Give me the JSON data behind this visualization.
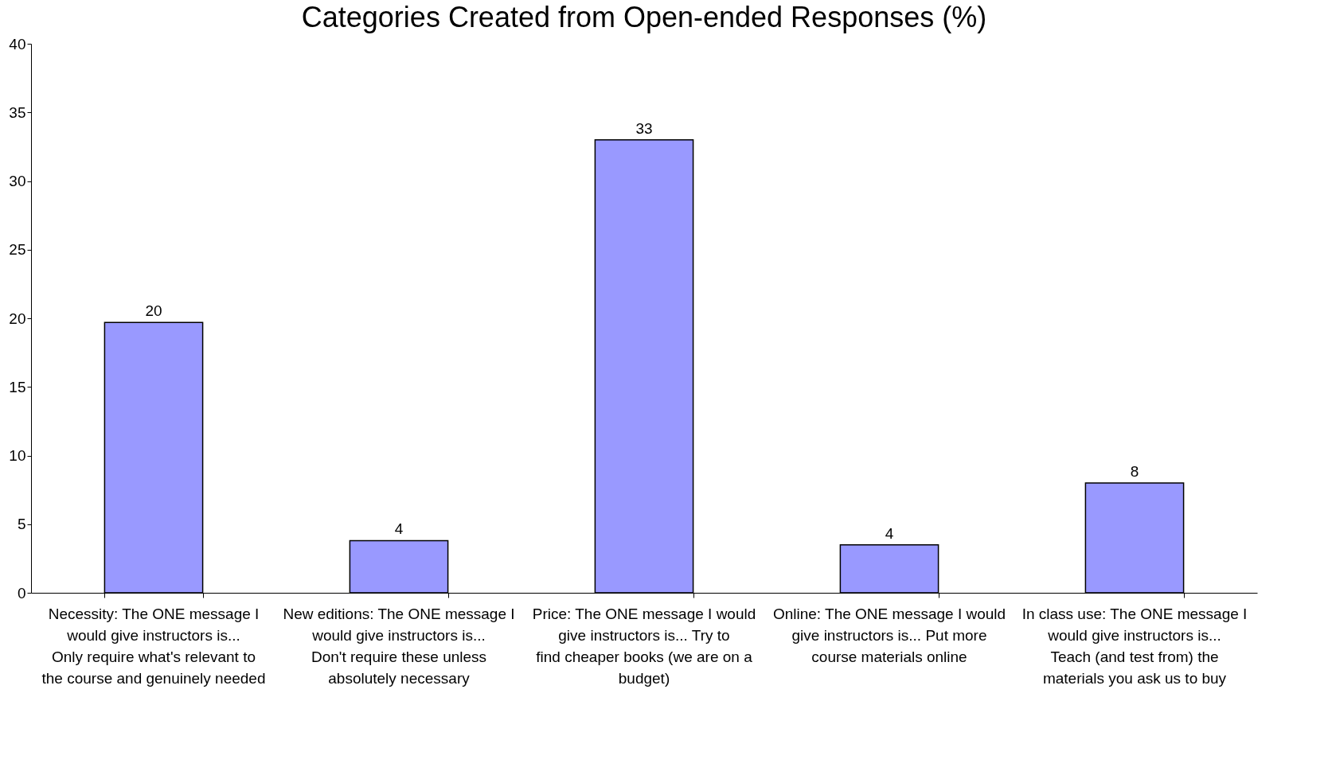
{
  "chart_data": {
    "type": "bar",
    "title": "Categories Created from Open-ended Responses (%)",
    "categories": [
      "Necessity: The ONE message I would give instructors is... Only require what's relevant to the course and genuinely needed",
      "New editions: The ONE message I would give instructors is... Don't require these unless absolutely necessary",
      "Price: The ONE message I would give instructors is... Try to find cheaper books (we are on a budget)",
      "Online: The ONE message I would give instructors is... Put more course materials online",
      "In class use: The ONE message I would give instructors is... Teach (and test from) the materials you ask us to buy"
    ],
    "values": [
      19.7,
      3.8,
      33,
      3.5,
      8
    ],
    "value_labels": [
      "20",
      "4",
      "33",
      "4",
      "8"
    ],
    "color": "#9999ff",
    "ylim": [
      0,
      40
    ],
    "yticks": [
      0,
      5,
      10,
      15,
      20,
      25,
      30,
      35,
      40
    ],
    "grid": false
  }
}
